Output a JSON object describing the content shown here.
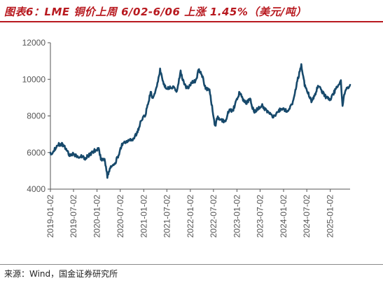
{
  "title": "图表6：LME 铜价上周 6/02-6/06 上涨 1.45%（美元/吨）",
  "source": "来源：Wind，国金证券研究所",
  "colors": {
    "line": "#17496b",
    "title": "#b8191f",
    "axis": "#555555"
  },
  "chart_data": {
    "type": "line",
    "title": "图表6：LME 铜价上周 6/02-6/06 上涨 1.45%（美元/吨）",
    "xlabel": "",
    "ylabel": "",
    "ylim": [
      4000,
      12000
    ],
    "yticks": [
      4000,
      6000,
      8000,
      10000,
      12000
    ],
    "yticklabels": [
      "4000",
      "6000",
      "8000",
      "10000",
      "12000"
    ],
    "xlim": [
      "2019-01-02",
      "2025-06-06"
    ],
    "xticks": [
      "2019-01-02",
      "2019-07-02",
      "2020-01-02",
      "2020-07-02",
      "2021-01-02",
      "2021-07-02",
      "2022-01-02",
      "2022-07-02",
      "2023-01-02",
      "2023-07-02",
      "2024-01-02",
      "2024-07-02",
      "2025-01-02"
    ],
    "grid": false,
    "legend": "none",
    "series": [
      {
        "name": "",
        "points": [
          [
            "2019-01-02",
            5900
          ],
          [
            "2019-02-01",
            6150
          ],
          [
            "2019-03-01",
            6450
          ],
          [
            "2019-04-01",
            6450
          ],
          [
            "2019-05-01",
            6250
          ],
          [
            "2019-06-01",
            5850
          ],
          [
            "2019-07-01",
            5950
          ],
          [
            "2019-08-01",
            5750
          ],
          [
            "2019-09-01",
            5800
          ],
          [
            "2019-10-01",
            5700
          ],
          [
            "2019-11-01",
            5850
          ],
          [
            "2019-12-01",
            6050
          ],
          [
            "2020-01-15",
            6250
          ],
          [
            "2020-02-01",
            5650
          ],
          [
            "2020-03-01",
            5650
          ],
          [
            "2020-03-23",
            4700
          ],
          [
            "2020-04-15",
            5150
          ],
          [
            "2020-05-15",
            5300
          ],
          [
            "2020-06-15",
            5800
          ],
          [
            "2020-07-15",
            6450
          ],
          [
            "2020-08-15",
            6550
          ],
          [
            "2020-09-15",
            6650
          ],
          [
            "2020-10-15",
            6750
          ],
          [
            "2020-11-15",
            7150
          ],
          [
            "2020-12-15",
            7800
          ],
          [
            "2021-01-15",
            8050
          ],
          [
            "2021-02-25",
            9300
          ],
          [
            "2021-03-15",
            8950
          ],
          [
            "2021-04-15",
            9600
          ],
          [
            "2021-05-10",
            10500
          ],
          [
            "2021-06-15",
            9600
          ],
          [
            "2021-07-15",
            9500
          ],
          [
            "2021-08-15",
            9600
          ],
          [
            "2021-09-15",
            9300
          ],
          [
            "2021-10-18",
            10400
          ],
          [
            "2021-11-15",
            9700
          ],
          [
            "2021-12-15",
            9500
          ],
          [
            "2022-01-15",
            9850
          ],
          [
            "2022-02-15",
            9900
          ],
          [
            "2022-03-07",
            10500
          ],
          [
            "2022-04-01",
            10300
          ],
          [
            "2022-05-01",
            9500
          ],
          [
            "2022-06-01",
            9400
          ],
          [
            "2022-07-15",
            7400
          ],
          [
            "2022-08-01",
            7900
          ],
          [
            "2022-09-01",
            7800
          ],
          [
            "2022-10-01",
            7700
          ],
          [
            "2022-11-01",
            8300
          ],
          [
            "2022-12-01",
            8300
          ],
          [
            "2023-01-23",
            9300
          ],
          [
            "2023-02-15",
            8900
          ],
          [
            "2023-03-15",
            8700
          ],
          [
            "2023-04-15",
            8900
          ],
          [
            "2023-05-15",
            8200
          ],
          [
            "2023-06-15",
            8400
          ],
          [
            "2023-07-15",
            8600
          ],
          [
            "2023-08-15",
            8300
          ],
          [
            "2023-09-15",
            8200
          ],
          [
            "2023-10-15",
            7950
          ],
          [
            "2023-11-15",
            8200
          ],
          [
            "2023-12-15",
            8400
          ],
          [
            "2024-01-15",
            8300
          ],
          [
            "2024-02-15",
            8300
          ],
          [
            "2024-03-15",
            8800
          ],
          [
            "2024-04-15",
            9800
          ],
          [
            "2024-05-20",
            10750
          ],
          [
            "2024-06-15",
            9700
          ],
          [
            "2024-07-15",
            9200
          ],
          [
            "2024-08-07",
            8800
          ],
          [
            "2024-09-01",
            9100
          ],
          [
            "2024-10-01",
            9700
          ],
          [
            "2024-11-01",
            9300
          ],
          [
            "2024-12-01",
            9000
          ],
          [
            "2025-01-02",
            8900
          ],
          [
            "2025-02-01",
            9300
          ],
          [
            "2025-03-26",
            9900
          ],
          [
            "2025-04-08",
            8550
          ],
          [
            "2025-04-20",
            9200
          ],
          [
            "2025-05-15",
            9550
          ],
          [
            "2025-06-06",
            9700
          ]
        ]
      }
    ]
  }
}
